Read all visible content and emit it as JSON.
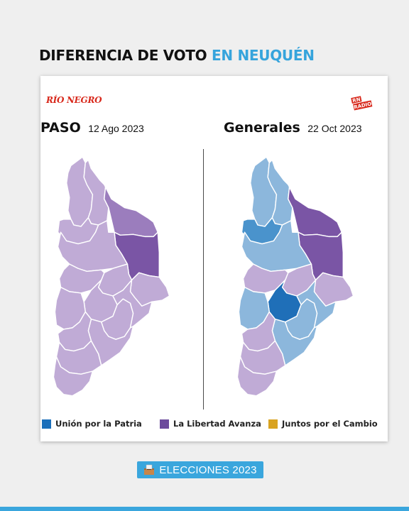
{
  "title": {
    "part1": "DIFERENCIA DE VOTO",
    "part2": "EN NEUQUÉN"
  },
  "brand": {
    "newspaper": "RÍO NEGRO",
    "radio_line1": "RN",
    "radio_line2": "RADIO"
  },
  "left_panel": {
    "heading": "PASO",
    "date": "12 Ago 2023"
  },
  "right_panel": {
    "heading": "Generales",
    "date": "22 Oct 2023"
  },
  "legend": [
    {
      "label": "Unión por la Patria",
      "color": "#1b6fba"
    },
    {
      "label": "La Libertad Avanza",
      "color": "#6c4a9c"
    },
    {
      "label": "Juntos por el Cambio",
      "color": "#d9a320"
    }
  ],
  "colors": {
    "libertad_dark": "#7a55a5",
    "libertad_mid": "#9b7dbd",
    "libertad_light": "#c0abd6",
    "union_dark": "#1f6fb8",
    "union_mid": "#4a93cc",
    "union_light": "#8cb7dc"
  },
  "map_winners": {
    "paso": {
      "minas": "libertad_light",
      "chos_malal": "libertad_light",
      "pehuenches": "libertad_mid",
      "norquin": "libertad_light",
      "anelo": "libertad_dark",
      "loncopue": "libertad_light",
      "anelo_south": "libertad_light",
      "confluencia": "libertad_light",
      "picunches": "libertad_light",
      "zapala": "libertad_light",
      "alumine": "libertad_light",
      "catan_lil": "libertad_light",
      "picun_leufu": "libertad_light",
      "collon_cura": "libertad_light",
      "huiliches": "libertad_light",
      "lacar": "libertad_light",
      "los_lagos": "libertad_light"
    },
    "generales": {
      "minas": "union_light",
      "chos_malal": "union_light",
      "pehuenches": "libertad_dark",
      "norquin": "union_mid",
      "anelo": "libertad_dark",
      "loncopue": "union_light",
      "anelo_south": "libertad_light",
      "confluencia": "libertad_light",
      "picunches": "libertad_light",
      "zapala": "union_dark",
      "alumine": "union_light",
      "catan_lil": "union_light",
      "picun_leufu": "union_light",
      "collon_cura": "union_light",
      "huiliches": "libertad_light",
      "lacar": "libertad_light",
      "los_lagos": "libertad_light"
    }
  },
  "footer": {
    "label": "ELECCIONES 2023",
    "icon": "ballot-box-icon"
  }
}
